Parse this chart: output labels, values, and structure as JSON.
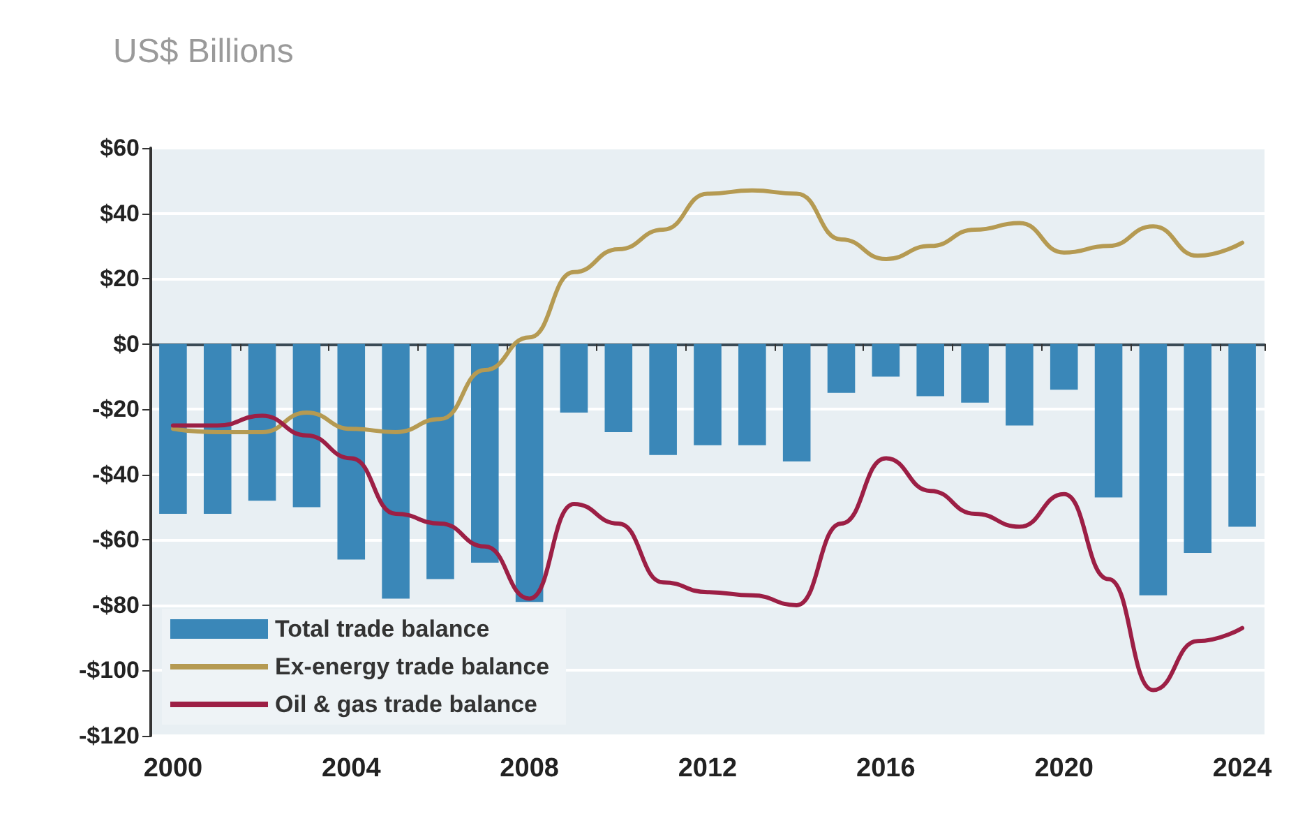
{
  "chart_data": {
    "type": "bar",
    "title": "US$ Billions",
    "categories": [
      "2000",
      null,
      null,
      null,
      "2004",
      null,
      null,
      null,
      "2008",
      null,
      null,
      null,
      "2012",
      null,
      null,
      null,
      "2016",
      null,
      null,
      null,
      "2020",
      null,
      null,
      null,
      "2024"
    ],
    "series": [
      {
        "name": "Total trade balance",
        "color": "#3a87b8",
        "values": [
          -52,
          -52,
          -48,
          -50,
          -66,
          -78,
          -72,
          -67,
          -79,
          -21,
          -27,
          -34,
          -31,
          -31,
          -36,
          -15,
          -10,
          -16,
          -18,
          -25,
          -14,
          -47,
          -77,
          -64,
          -56
        ]
      },
      {
        "name": "Ex-energy trade balance",
        "type": "line",
        "color": "#b59a52",
        "values": [
          -26,
          -27,
          -27,
          -21,
          -26,
          -27,
          -23,
          -8,
          2,
          22,
          29,
          35,
          46,
          47,
          46,
          32,
          26,
          30,
          35,
          37,
          28,
          30,
          36,
          27,
          31
        ]
      },
      {
        "name": "Oil & gas trade balance",
        "type": "line",
        "color": "#9c1f45",
        "values": [
          -25,
          -25,
          -22,
          -28,
          -35,
          -52,
          -55,
          -62,
          -78,
          -49,
          -55,
          -73,
          -76,
          -77,
          -80,
          -55,
          -35,
          -45,
          -52,
          -56,
          -46,
          -72,
          -106,
          -91,
          -87
        ]
      }
    ],
    "ylim": [
      -120,
      60
    ],
    "yticks": [
      {
        "value": -120,
        "label": "-$120"
      },
      {
        "value": -100,
        "label": "-$100"
      },
      {
        "value": -80,
        "label": "-$80"
      },
      {
        "value": -60,
        "label": "-$60"
      },
      {
        "value": -40,
        "label": "-$40"
      },
      {
        "value": -20,
        "label": "-$20"
      },
      {
        "value": 0,
        "label": "$0"
      },
      {
        "value": 20,
        "label": "$20"
      },
      {
        "value": 40,
        "label": "$40"
      },
      {
        "value": 60,
        "label": "$60"
      }
    ],
    "grid": "y",
    "legend": "bottom left",
    "marker": "none",
    "line_style": "solid"
  }
}
